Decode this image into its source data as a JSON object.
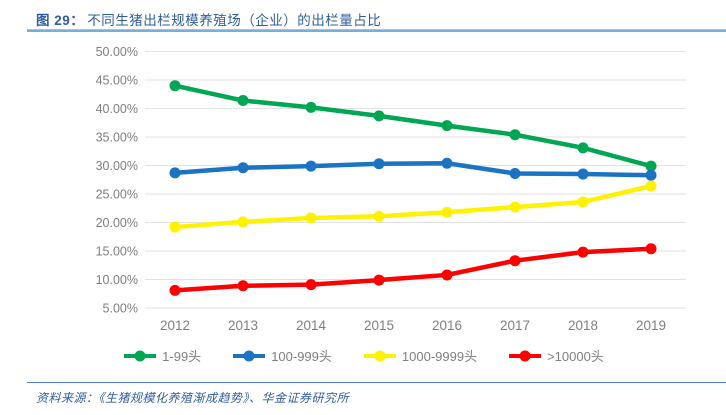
{
  "figure": {
    "label": "图 29：",
    "title": "不同生猪出栏规模养殖场（企业）的出栏量占比",
    "source": "资料来源：《生猪规模化养殖渐成趋势》、华金证券研究所"
  },
  "colors": {
    "title_blue": "#2F5D9E",
    "rule_light_blue": "#79AFD7",
    "rule_bottom_blue": "#4C7FBB",
    "axis_text_gray": "#7F7F7F",
    "gridline_gray": "#E2E2E2"
  },
  "chart_data": {
    "type": "line",
    "title": "不同生猪出栏规模养殖场（企业）的出栏量占比",
    "x": [
      "2012",
      "2013",
      "2014",
      "2015",
      "2016",
      "2017",
      "2018",
      "2019"
    ],
    "series": [
      {
        "name": "1-99头",
        "color": "#00A651",
        "values": [
          44.0,
          41.4,
          40.2,
          38.7,
          37.0,
          35.4,
          33.1,
          29.9
        ]
      },
      {
        "name": "100-999头",
        "color": "#1C73C4",
        "values": [
          28.7,
          29.6,
          29.9,
          30.3,
          30.4,
          28.6,
          28.5,
          28.3
        ]
      },
      {
        "name": "1000-9999头",
        "color": "#FFF200",
        "values": [
          19.2,
          20.1,
          20.8,
          21.1,
          21.8,
          22.7,
          23.6,
          26.4
        ]
      },
      {
        "name": ">10000头",
        "color": "#FE0000",
        "values": [
          8.1,
          8.9,
          9.1,
          9.9,
          10.8,
          13.3,
          14.8,
          15.4
        ]
      }
    ],
    "y_ticks": [
      50,
      45,
      40,
      35,
      30,
      25,
      20,
      15,
      10,
      5
    ],
    "y_tick_labels": [
      "50.00%",
      "45.00%",
      "40.00%",
      "35.00%",
      "30.00%",
      "25.00%",
      "20.00%",
      "15.00%",
      "10.00%",
      "5.00%"
    ],
    "ylim": [
      5,
      50
    ],
    "xlabel": "",
    "ylabel": "",
    "grid": true,
    "legend_position": "bottom"
  }
}
